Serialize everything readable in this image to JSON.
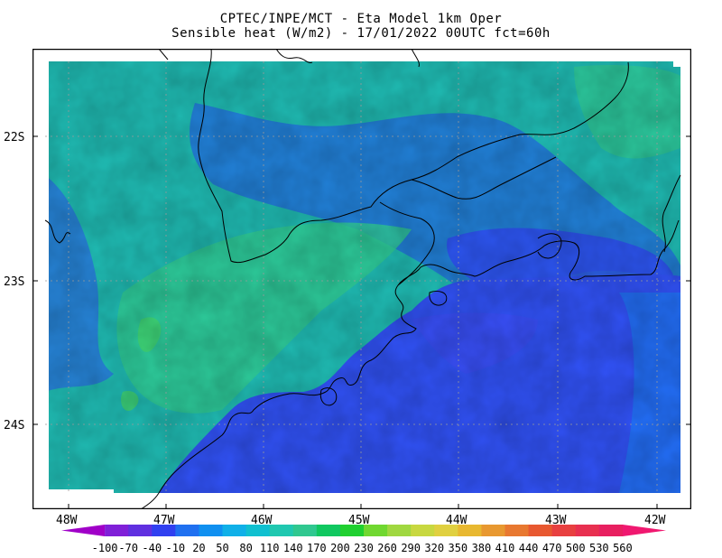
{
  "header": {
    "title_line1": "CPTEC/INPE/MCT -  Eta Model 1km Oper",
    "title_line2": "Sensible heat (W/m2) - 17/01/2022 00UTC fct=60h"
  },
  "map": {
    "lat_labels": [
      "22S",
      "23S",
      "24S"
    ],
    "lon_labels": [
      "48W",
      "47W",
      "46W",
      "45W",
      "44W",
      "43W",
      "42W"
    ],
    "ocean_color": "#3050f0",
    "land_base_color": "#20b8b0"
  },
  "colorbar": {
    "labels": [
      "-100",
      "-70",
      "-40",
      "-10",
      "20",
      "50",
      "80",
      "110",
      "140",
      "170",
      "200",
      "230",
      "260",
      "290",
      "320",
      "350",
      "380",
      "410",
      "440",
      "470",
      "500",
      "530",
      "560"
    ],
    "colors": [
      "#a000c8",
      "#8020d8",
      "#6030e0",
      "#3040f0",
      "#2070f0",
      "#1090f0",
      "#10b0e8",
      "#10c0d0",
      "#20c8b0",
      "#30c890",
      "#10c860",
      "#20d030",
      "#70d830",
      "#a0d840",
      "#c8d840",
      "#e0d040",
      "#e8b830",
      "#e89830",
      "#e87830",
      "#e85830",
      "#e84040",
      "#e83050",
      "#e82060",
      "#f01870"
    ]
  }
}
